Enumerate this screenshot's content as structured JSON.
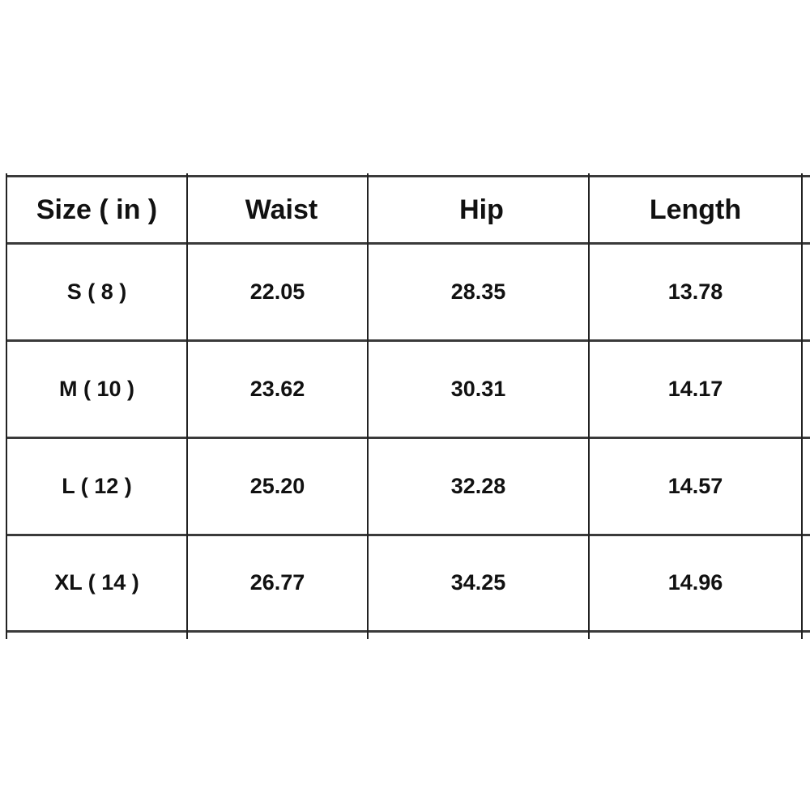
{
  "table": {
    "headers": [
      "Size ( in )",
      "Waist",
      "Hip",
      "Length"
    ],
    "rows": [
      [
        "S ( 8 )",
        "22.05",
        "28.35",
        "13.78"
      ],
      [
        "M ( 10 )",
        "23.62",
        "30.31",
        "14.17"
      ],
      [
        "L ( 12 )",
        "25.20",
        "32.28",
        "14.57"
      ],
      [
        "XL ( 14 )",
        "26.77",
        "34.25",
        "14.96"
      ]
    ]
  }
}
